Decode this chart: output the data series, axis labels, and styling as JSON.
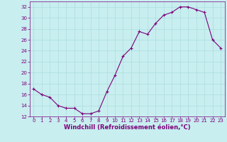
{
  "x": [
    0,
    1,
    2,
    3,
    4,
    5,
    6,
    7,
    8,
    9,
    10,
    11,
    12,
    13,
    14,
    15,
    16,
    17,
    18,
    19,
    20,
    21,
    22,
    23
  ],
  "y": [
    17,
    16,
    15.5,
    14,
    13.5,
    13.5,
    12.5,
    12.5,
    13,
    16.5,
    19.5,
    23,
    24.5,
    27.5,
    27,
    29,
    30.5,
    31,
    32,
    32,
    31.5,
    31,
    26,
    24.5
  ],
  "line_color": "#7B0079",
  "marker": "+",
  "background_color": "#c8eef0",
  "grid_color": "#aadddd",
  "xlabel": "Windchill (Refroidissement éolien,°C)",
  "xlabel_color": "#7B0079",
  "ylim": [
    12,
    33
  ],
  "xlim": [
    -0.5,
    23.5
  ],
  "yticks": [
    12,
    14,
    16,
    18,
    20,
    22,
    24,
    26,
    28,
    30,
    32
  ],
  "xticks": [
    0,
    1,
    2,
    3,
    4,
    5,
    6,
    7,
    8,
    9,
    10,
    11,
    12,
    13,
    14,
    15,
    16,
    17,
    18,
    19,
    20,
    21,
    22,
    23
  ],
  "tick_label_fontsize": 5.0,
  "xlabel_fontsize": 6.0,
  "line_width": 0.8,
  "marker_size": 3.5,
  "marker_edge_width": 0.8
}
